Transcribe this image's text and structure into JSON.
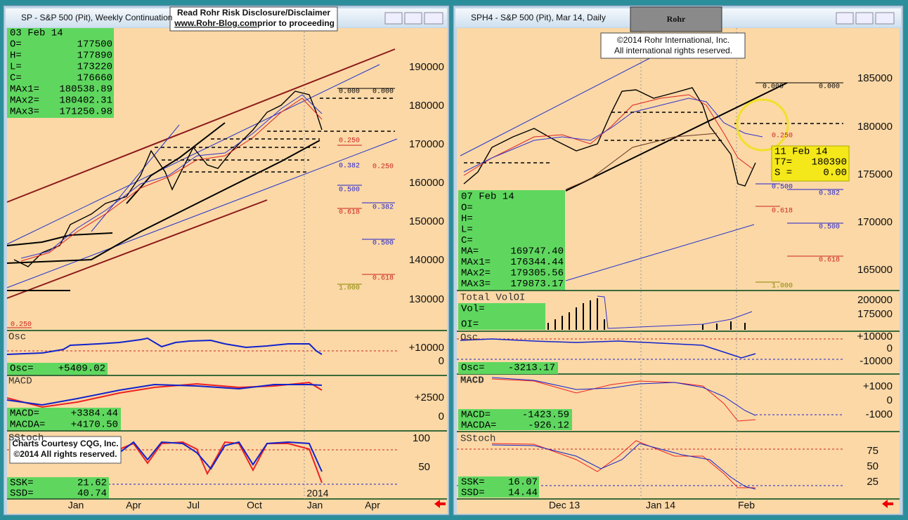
{
  "disclaimer": {
    "line1": "Read Rohr Risk Disclosure/Disclaimer",
    "link": "www.Rohr-Blog.com",
    "rest": "prior to proceeding"
  },
  "logo": "Rohr",
  "copyright": [
    "©2014 Rohr International, Inc.",
    "All international rights reserved."
  ],
  "courtesy": [
    "Charts Courtesy CQG, Inc.",
    "©2014 All rights reserved."
  ],
  "left": {
    "title": "SP - S&P 500 (Pit), Weekly Continuation",
    "info": {
      "date": "03 Feb 14",
      "rows": [
        [
          "O=",
          "177500"
        ],
        [
          "H=",
          "177890"
        ],
        [
          "L=",
          "173220"
        ],
        [
          "C=",
          "176660"
        ],
        [
          "MAx1=",
          "180538.89"
        ],
        [
          "MAx2=",
          "180402.31"
        ],
        [
          "MAx3=",
          "171250.98"
        ]
      ]
    },
    "price_axis": [
      "190000",
      "180000",
      "170000",
      "160000",
      "150000",
      "140000",
      "130000"
    ],
    "fib": [
      "0.000",
      "0.000",
      "0.250",
      "0.250",
      "0.382",
      "0.382",
      "0.500",
      "0.500",
      "0.618",
      "0.618",
      "1.000",
      "0.250"
    ],
    "osc": {
      "name": "Osc",
      "readout": [
        "Osc=",
        "+5409.02"
      ],
      "axis": [
        "+10000",
        "0"
      ]
    },
    "macd": {
      "name": "MACD",
      "readout": [
        [
          "MACD=",
          "+3384.44"
        ],
        [
          "MACDA=",
          "+4170.50"
        ]
      ],
      "axis": [
        "+2500",
        "0"
      ]
    },
    "stoch": {
      "name": "SStoch",
      "readout": [
        [
          "SSK=",
          "21.62"
        ],
        [
          "SSD=",
          "40.74"
        ]
      ],
      "axis": [
        "100",
        "50"
      ]
    },
    "x_axis": [
      "Jan",
      "Apr",
      "Jul",
      "Oct",
      "2014",
      "Jan",
      "Apr"
    ]
  },
  "right": {
    "title": "SPH4 - S&P 500 (Pit), Mar 14, Daily",
    "info": {
      "date": "07 Feb 14",
      "rows": [
        [
          "O=",
          ""
        ],
        [
          "H=",
          ""
        ],
        [
          "L=",
          ""
        ],
        [
          "C=",
          ""
        ],
        [
          "MA=",
          "169747.40"
        ],
        [
          "MAx1=",
          "176344.44"
        ],
        [
          "MAx2=",
          "179305.56"
        ],
        [
          "MAx3=",
          "179873.17"
        ]
      ]
    },
    "cursor": {
      "date": "11 Feb 14",
      "rows": [
        [
          "T7=",
          "180390"
        ],
        [
          "S =",
          "0.00"
        ]
      ]
    },
    "price_axis": [
      "185000",
      "180000",
      "175000",
      "170000",
      "165000"
    ],
    "fib": [
      "0.000",
      "0.000",
      "0.250",
      "0.500",
      "0.382",
      "0.618",
      "0.500",
      "0.618",
      "1.000"
    ],
    "vol": {
      "name": "Total VolOI",
      "readout": [
        "Vol=",
        "OI="
      ],
      "axis": [
        "200000",
        "175000"
      ]
    },
    "osc": {
      "name": "Osc",
      "readout": [
        "Osc=",
        "-3213.17"
      ],
      "axis": [
        "+10000",
        "0",
        "-10000"
      ]
    },
    "macd": {
      "name": "MACD",
      "readout": [
        [
          "MACD=",
          "-1423.59"
        ],
        [
          "MACDA=",
          "-926.12"
        ]
      ],
      "axis": [
        "+1000",
        "0",
        "-1000"
      ]
    },
    "stoch": {
      "name": "SStoch",
      "readout": [
        [
          "SSK=",
          "16.07"
        ],
        [
          "SSD=",
          "14.44"
        ]
      ],
      "axis": [
        "75",
        "50",
        "25"
      ]
    },
    "x_axis": [
      "Dec 13",
      "Jan 14",
      "Feb"
    ]
  }
}
